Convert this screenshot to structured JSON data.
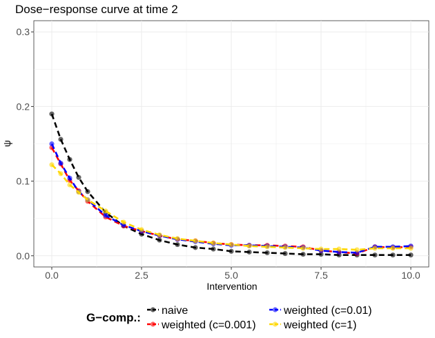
{
  "chart_data": {
    "type": "line",
    "title": "Dose−response curve at time 2",
    "xlabel": "Intervention",
    "ylabel": "ψ",
    "xlim": [
      -0.5,
      10.5
    ],
    "ylim": [
      -0.015,
      0.315
    ],
    "x_ticks": [
      0,
      2.5,
      5,
      7.5,
      10
    ],
    "x_tick_labels": [
      "0.0",
      "2.5",
      "5.0",
      "7.5",
      "10.0"
    ],
    "y_ticks": [
      0,
      0.1,
      0.2,
      0.3
    ],
    "y_tick_labels": [
      "0.0",
      "0.1",
      "0.2",
      "0.3"
    ],
    "grid": true,
    "legend": {
      "title": "G−comp.:",
      "position": "bottom"
    },
    "x": [
      0,
      0.25,
      0.5,
      0.75,
      1,
      1.5,
      2,
      2.5,
      3,
      3.5,
      4,
      4.5,
      5,
      5.5,
      6,
      6.5,
      7,
      7.5,
      8,
      8.5,
      9,
      9.5,
      10
    ],
    "series": [
      {
        "name": "naive",
        "color": "#000000",
        "values": [
          0.19,
          0.156,
          0.129,
          0.105,
          0.086,
          0.058,
          0.04,
          0.029,
          0.021,
          0.015,
          0.011,
          0.009,
          0.006,
          0.005,
          0.004,
          0.003,
          0.002,
          0.002,
          0.001,
          0.001,
          0.001,
          0.001,
          0.001
        ]
      },
      {
        "name": "weighted (c=0.001)",
        "color": "#ff0000",
        "values": [
          0.145,
          0.123,
          0.101,
          0.087,
          0.073,
          0.052,
          0.04,
          0.033,
          0.027,
          0.022,
          0.02,
          0.017,
          0.015,
          0.014,
          0.014,
          0.013,
          0.012,
          0.007,
          0.005,
          0.003,
          0.012,
          0.011,
          0.012
        ]
      },
      {
        "name": "weighted (c=0.01)",
        "color": "#0000ff",
        "values": [
          0.15,
          0.124,
          0.104,
          0.086,
          0.075,
          0.054,
          0.041,
          0.033,
          0.027,
          0.022,
          0.019,
          0.016,
          0.014,
          0.014,
          0.013,
          0.012,
          0.011,
          0.007,
          0.005,
          0.004,
          0.012,
          0.012,
          0.013
        ]
      },
      {
        "name": "weighted (c=1)",
        "color": "#ffd700",
        "values": [
          0.122,
          0.11,
          0.095,
          0.085,
          0.075,
          0.06,
          0.045,
          0.035,
          0.028,
          0.023,
          0.02,
          0.017,
          0.015,
          0.013,
          0.012,
          0.011,
          0.01,
          0.009,
          0.009,
          0.008,
          0.01,
          0.01,
          0.01
        ]
      }
    ]
  }
}
